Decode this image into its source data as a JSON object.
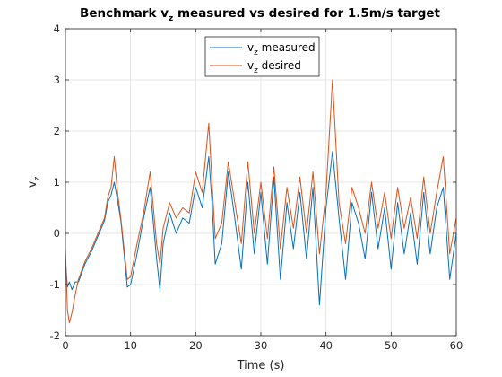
{
  "chart_data": {
    "type": "line",
    "title_main": "Benchmark v",
    "title_sub": "z",
    "title_rest": " measured vs desired for 1.5m/s target",
    "xlabel": "Time (s)",
    "ylabel_main": "v",
    "ylabel_sub": "z",
    "xlim": [
      0,
      60
    ],
    "ylim": [
      -2,
      4
    ],
    "xticks": [
      0,
      10,
      20,
      30,
      40,
      50,
      60
    ],
    "yticks": [
      -2,
      -1,
      0,
      1,
      2,
      3,
      4
    ],
    "xtick_labels": [
      "0",
      "10",
      "20",
      "30",
      "40",
      "50",
      "60"
    ],
    "ytick_labels": [
      "-2",
      "-1",
      "0",
      "1",
      "2",
      "3",
      "4"
    ],
    "grid": true,
    "legend_position": "top-center",
    "series": [
      {
        "name_main": "v",
        "name_sub": "z",
        "name_rest": " measured",
        "color": "#0072bd",
        "x": [
          0,
          0.3,
          0.6,
          1.0,
          1.5,
          2.0,
          3,
          4,
          5,
          6,
          6.5,
          7.0,
          7.5,
          8.0,
          8.5,
          9.0,
          9.5,
          10,
          11,
          12,
          13,
          14,
          14.5,
          15,
          16,
          17,
          18,
          19,
          20,
          21,
          22,
          22.5,
          23,
          24,
          25,
          26,
          27,
          28,
          29,
          30,
          31,
          32,
          33,
          34,
          35,
          36,
          37,
          38,
          39,
          40,
          41,
          42,
          43,
          44,
          45,
          46,
          47,
          48,
          49,
          50,
          51,
          52,
          53,
          54,
          55,
          56,
          57,
          58,
          59,
          60
        ],
        "y": [
          -0.5,
          -1.05,
          -0.95,
          -1.1,
          -0.95,
          -0.95,
          -0.6,
          -0.35,
          -0.05,
          0.25,
          0.6,
          0.75,
          1.0,
          0.65,
          0.25,
          -0.4,
          -1.05,
          -1.0,
          -0.4,
          0.3,
          0.9,
          -0.5,
          -1.1,
          -0.2,
          0.4,
          0.0,
          0.3,
          0.2,
          0.9,
          0.5,
          1.5,
          0.6,
          -0.6,
          -0.2,
          1.2,
          0.3,
          -0.7,
          1.0,
          -0.4,
          0.8,
          -0.6,
          1.1,
          -0.9,
          0.6,
          -0.3,
          0.8,
          -0.5,
          0.9,
          -1.4,
          0.5,
          1.6,
          0.3,
          -0.9,
          0.6,
          0.2,
          -0.5,
          0.8,
          -0.3,
          0.5,
          -0.7,
          0.6,
          -0.4,
          0.4,
          -0.6,
          0.8,
          -0.4,
          0.5,
          0.9,
          -0.9,
          0.0
        ]
      },
      {
        "name_main": "v",
        "name_sub": "z",
        "name_rest": " desired",
        "color": "#d95319",
        "x": [
          0,
          0.3,
          0.6,
          1.0,
          1.5,
          2.0,
          3,
          4,
          5,
          6,
          6.5,
          7.0,
          7.5,
          8.0,
          8.5,
          9.0,
          9.5,
          10,
          11,
          12,
          13,
          14,
          14.5,
          15,
          16,
          17,
          18,
          19,
          20,
          21,
          22,
          22.5,
          23,
          24,
          25,
          26,
          27,
          28,
          29,
          30,
          31,
          32,
          33,
          34,
          35,
          36,
          37,
          38,
          39,
          40,
          41,
          42,
          43,
          44,
          45,
          46,
          47,
          48,
          49,
          50,
          51,
          52,
          53,
          54,
          55,
          56,
          57,
          58,
          59,
          60
        ],
        "y": [
          -0.3,
          -1.5,
          -1.75,
          -1.55,
          -1.2,
          -0.9,
          -0.55,
          -0.3,
          0.0,
          0.3,
          0.7,
          0.9,
          1.5,
          0.8,
          0.3,
          -0.3,
          -0.9,
          -0.85,
          -0.2,
          0.4,
          1.2,
          -0.2,
          -0.6,
          0.1,
          0.6,
          0.3,
          0.5,
          0.4,
          1.2,
          0.8,
          2.15,
          1.0,
          -0.1,
          0.2,
          1.4,
          0.6,
          -0.2,
          1.4,
          0.0,
          1.0,
          -0.1,
          1.3,
          -0.3,
          0.9,
          0.1,
          1.1,
          0.0,
          1.2,
          -0.4,
          0.8,
          3.0,
          0.6,
          -0.2,
          0.9,
          0.5,
          0.0,
          1.0,
          0.1,
          0.8,
          -0.1,
          0.9,
          0.1,
          0.7,
          -0.1,
          1.1,
          0.0,
          0.8,
          1.5,
          -0.4,
          0.3
        ]
      }
    ]
  }
}
